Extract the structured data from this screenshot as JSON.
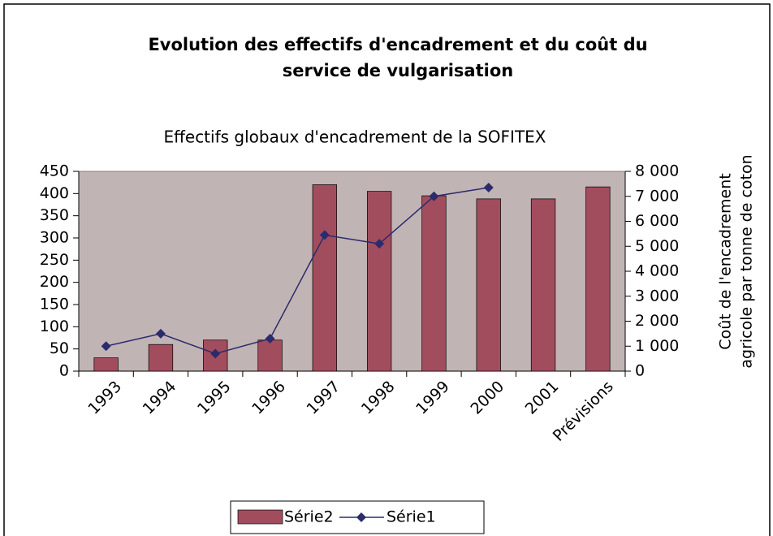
{
  "chart_data": {
    "type": "bar_line",
    "title": [
      "Evolution des effectifs d'encadrement et du coût du",
      "service de vulgarisation"
    ],
    "subtitle": "Effectifs globaux d'encadrement de la SOFITEX",
    "y2label": [
      "Coût de l'encadrement",
      "agricole par tonne de coton"
    ],
    "categories": [
      "1993",
      "1994",
      "1995",
      "1996",
      "1997",
      "1998",
      "1999",
      "2000",
      "2001",
      "Prévisions"
    ],
    "series": [
      {
        "name": "Série2",
        "type": "bar",
        "color": "#a24d5e",
        "values": [
          30,
          60,
          70,
          70,
          420,
          405,
          395,
          388,
          388,
          415
        ]
      },
      {
        "name": "Série1",
        "type": "line",
        "axis": "y2",
        "color": "#2b2b6e",
        "values": [
          1000,
          1500,
          700,
          1300,
          5450,
          5100,
          7000,
          7350,
          null,
          null
        ]
      }
    ],
    "ylim": [
      0,
      450
    ],
    "yticks": [
      0,
      50,
      100,
      150,
      200,
      250,
      300,
      350,
      400,
      450
    ],
    "y2lim": [
      0,
      8000
    ],
    "y2ticks": [
      0,
      {
        "value": 1000,
        "label": "1 000"
      },
      {
        "value": 2000,
        "label": "2 000"
      },
      {
        "value": 3000,
        "label": "3 000"
      },
      {
        "value": 4000,
        "label": "4 000"
      },
      {
        "value": 5000,
        "label": "5 000"
      },
      {
        "value": 6000,
        "label": "6 000"
      },
      {
        "value": 7000,
        "label": "7 000"
      },
      {
        "value": 8000,
        "label": "8 000"
      }
    ],
    "plot_background": "#c1b4b4",
    "legend": "bottom"
  }
}
